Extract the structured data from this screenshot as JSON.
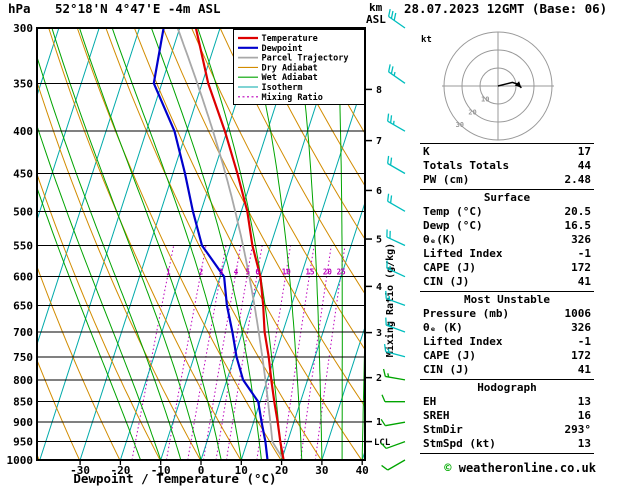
{
  "header": {
    "station": "52°18'N 4°47'E -4m ASL",
    "datetime": "28.07.2023 12GMT (Base: 06)",
    "pressure_unit": "hPa",
    "km_label": "km",
    "asl_label": "ASL",
    "lcl_label": "LCL"
  },
  "axes": {
    "pressure_ticks": [
      300,
      350,
      400,
      450,
      500,
      550,
      600,
      650,
      700,
      750,
      800,
      850,
      900,
      950,
      1000
    ],
    "temp_ticks": [
      -30,
      -20,
      -10,
      0,
      10,
      20,
      30,
      40
    ],
    "km_ticks": [
      1,
      2,
      3,
      4,
      5,
      6,
      7,
      8
    ],
    "xlabel": "Dewpoint / Temperature (°C)",
    "mixing_ratio_axis_label": "Mixing Ratio (g/kg)"
  },
  "legend": [
    {
      "label": "Temperature",
      "color": "#dd0000",
      "width": 2.2,
      "style": "solid"
    },
    {
      "label": "Dewpoint",
      "color": "#0000cc",
      "width": 2.2,
      "style": "solid"
    },
    {
      "label": "Parcel Trajectory",
      "color": "#a8a8a8",
      "width": 1.8,
      "style": "solid"
    },
    {
      "label": "Dry Adiabat",
      "color": "#d28c00",
      "width": 1.1,
      "style": "solid"
    },
    {
      "label": "Wet Adiabat",
      "color": "#00a400",
      "width": 1.1,
      "style": "solid"
    },
    {
      "label": "Isotherm",
      "color": "#00aaaa",
      "width": 1.1,
      "style": "solid"
    },
    {
      "label": "Mixing Ratio",
      "color": "#bb00bb",
      "width": 1.1,
      "style": "dotted"
    }
  ],
  "chart_data": {
    "type": "skewt-logp",
    "pressure_range_hPa": [
      300,
      1000
    ],
    "temp_axis_range_C": [
      -40,
      40
    ],
    "pressure_hPa": [
      1000,
      950,
      900,
      850,
      800,
      750,
      700,
      650,
      600,
      550,
      500,
      450,
      400,
      350,
      300
    ],
    "temperature_C": [
      20.5,
      18.2,
      16.0,
      13.5,
      11.0,
      8.5,
      5.5,
      3.0,
      0.0,
      -4.5,
      -8.5,
      -14.0,
      -20.5,
      -28.5,
      -36.0
    ],
    "dewpoint_C": [
      16.5,
      14.5,
      12.0,
      9.5,
      4.0,
      0.5,
      -2.5,
      -6.0,
      -9.0,
      -17.0,
      -22.0,
      -27.0,
      -33.0,
      -42.0,
      -44.0
    ],
    "parcel": {
      "surface_temp_C": 20.5,
      "surface_dewp_C": 16.5,
      "surface_pressure_mb": 1006,
      "lcl_pressure_hPa": 950
    },
    "mixing_ratio_lines_gkg": [
      1,
      2,
      3,
      4,
      5,
      6,
      10,
      15,
      20,
      25
    ],
    "isotherm_step_C": 10,
    "dry_adiabat_step_K": 10,
    "wet_adiabat_step_C": 5,
    "km_tick_pressures": {
      "1": 898.7,
      "2": 794.9,
      "3": 701.1,
      "4": 616.4,
      "5": 540.2,
      "6": 471.8,
      "7": 410.6,
      "8": 356.0
    },
    "wind_barbs": [
      {
        "p": 1000,
        "spd": 10,
        "dir": 240,
        "color": "#00a400"
      },
      {
        "p": 950,
        "spd": 10,
        "dir": 250,
        "color": "#00a400"
      },
      {
        "p": 900,
        "spd": 10,
        "dir": 260,
        "color": "#00a400"
      },
      {
        "p": 850,
        "spd": 10,
        "dir": 270,
        "color": "#00a400"
      },
      {
        "p": 800,
        "spd": 15,
        "dir": 280,
        "color": "#00a400"
      },
      {
        "p": 750,
        "spd": 15,
        "dir": 285,
        "color": "#00bebe"
      },
      {
        "p": 700,
        "spd": 15,
        "dir": 290,
        "color": "#00bebe"
      },
      {
        "p": 650,
        "spd": 15,
        "dir": 290,
        "color": "#00bebe"
      },
      {
        "p": 600,
        "spd": 15,
        "dir": 295,
        "color": "#00bebe"
      },
      {
        "p": 550,
        "spd": 20,
        "dir": 295,
        "color": "#00bebe"
      },
      {
        "p": 500,
        "spd": 20,
        "dir": 300,
        "color": "#00bebe"
      },
      {
        "p": 450,
        "spd": 20,
        "dir": 300,
        "color": "#00bebe"
      },
      {
        "p": 400,
        "spd": 25,
        "dir": 300,
        "color": "#00bebe"
      },
      {
        "p": 350,
        "spd": 25,
        "dir": 305,
        "color": "#00bebe"
      },
      {
        "p": 300,
        "spd": 30,
        "dir": 305,
        "color": "#00bebe"
      }
    ],
    "colors": {
      "temperature": "#dd0000",
      "dewpoint": "#0000cc",
      "parcel": "#a8a8a8",
      "dry_adiabat": "#d28c00",
      "wet_adiabat": "#00a400",
      "isotherm": "#00aaaa",
      "mixing_ratio": "#bb00bb",
      "grid": "#000000"
    }
  },
  "hodograph": {
    "unit_label": "kt",
    "ring_labels": [
      10,
      20,
      30
    ],
    "trace_kt": [
      [
        0,
        0
      ],
      [
        4,
        -1
      ],
      [
        8,
        -2
      ],
      [
        11,
        -1
      ],
      [
        13,
        1
      ]
    ]
  },
  "panel": {
    "sections": [
      {
        "title": null,
        "rows": [
          [
            "K",
            "17"
          ],
          [
            "Totals Totals",
            "44"
          ],
          [
            "PW (cm)",
            "2.48"
          ]
        ]
      },
      {
        "title": "Surface",
        "rows": [
          [
            "Temp (°C)",
            "20.5"
          ],
          [
            "Dewp (°C)",
            "16.5"
          ],
          [
            "θₑ(K)",
            "326"
          ],
          [
            "Lifted Index",
            "-1"
          ],
          [
            "CAPE (J)",
            "172"
          ],
          [
            "CIN (J)",
            "41"
          ]
        ]
      },
      {
        "title": "Most Unstable",
        "rows": [
          [
            "Pressure (mb)",
            "1006"
          ],
          [
            "θₑ (K)",
            "326"
          ],
          [
            "Lifted Index",
            "-1"
          ],
          [
            "CAPE (J)",
            "172"
          ],
          [
            "CIN (J)",
            "41"
          ]
        ]
      },
      {
        "title": "Hodograph",
        "rows": [
          [
            "EH",
            "13"
          ],
          [
            "SREH",
            "16"
          ],
          [
            "StmDir",
            "293°"
          ],
          [
            "StmSpd (kt)",
            "13"
          ]
        ]
      }
    ]
  },
  "footer": {
    "copyright_symbol": "©",
    "copyright_text": " weatheronline.co.uk"
  }
}
